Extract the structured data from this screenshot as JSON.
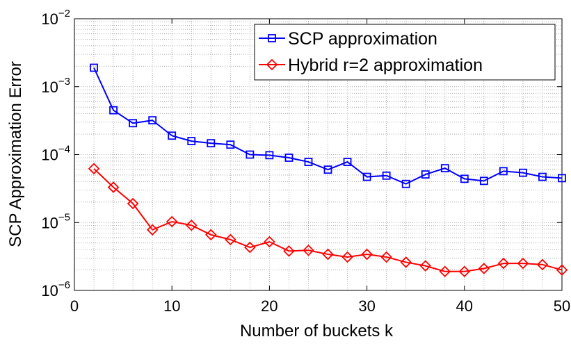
{
  "chart_data": {
    "type": "line",
    "xlabel": "Number of buckets k",
    "ylabel": "SCP Approximation Error",
    "x": [
      2,
      4,
      6,
      8,
      10,
      12,
      14,
      16,
      18,
      20,
      22,
      24,
      26,
      28,
      30,
      32,
      34,
      36,
      38,
      40,
      42,
      44,
      46,
      48,
      50
    ],
    "series": [
      {
        "name": "SCP approximation",
        "color": "#0000ff",
        "marker": "square",
        "values": [
          0.0019,
          0.00045,
          0.00029,
          0.00032,
          0.00019,
          0.000158,
          0.000147,
          0.00014,
          0.0001,
          9.8e-05,
          9e-05,
          7.8e-05,
          6e-05,
          7.8e-05,
          4.7e-05,
          4.9e-05,
          3.7e-05,
          5.1e-05,
          6.3e-05,
          4.4e-05,
          4.1e-05,
          5.7e-05,
          5.4e-05,
          4.7e-05,
          4.5e-05
        ]
      },
      {
        "name": "Hybrid r=2 approximation",
        "color": "#ff0000",
        "marker": "diamond",
        "values": [
          6.2e-05,
          3.3e-05,
          1.9e-05,
          7.8e-06,
          1.03e-05,
          9.1e-06,
          6.6e-06,
          5.6e-06,
          4.3e-06,
          5.2e-06,
          3.8e-06,
          3.9e-06,
          3.4e-06,
          3.1e-06,
          3.4e-06,
          3.1e-06,
          2.6e-06,
          2.3e-06,
          1.9e-06,
          1.9e-06,
          2.1e-06,
          2.5e-06,
          2.5e-06,
          2.4e-06,
          2e-06
        ]
      }
    ],
    "xlim": [
      0,
      50
    ],
    "xticks": [
      0,
      10,
      20,
      30,
      40,
      50
    ],
    "ylim": [
      1e-06,
      0.01
    ],
    "yticks": [
      {
        "value": 1e-06,
        "label": "10^-6"
      },
      {
        "value": 1e-05,
        "label": "10^-5"
      },
      {
        "value": 0.0001,
        "label": "10^-4"
      },
      {
        "value": 0.001,
        "label": "10^-3"
      },
      {
        "value": 0.01,
        "label": "10^-2"
      }
    ],
    "yscale": "log",
    "grid": true,
    "legend": "upper right"
  }
}
